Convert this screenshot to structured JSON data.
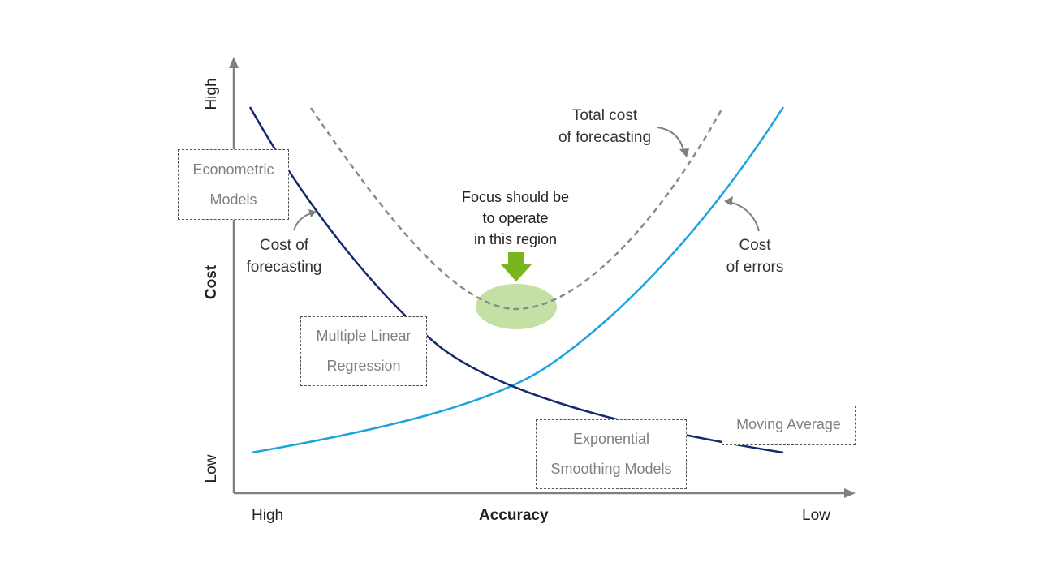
{
  "axes": {
    "y_title": "Cost",
    "y_high": "High",
    "y_low": "Low",
    "x_title": "Accuracy",
    "x_high": "High",
    "x_low": "Low"
  },
  "labels": {
    "total_cost_line1": "Total cost",
    "total_cost_line2": "of forecasting",
    "focus_line1": "Focus should be",
    "focus_line2": "to operate",
    "focus_line3": "in this region",
    "cost_forecasting_line1": "Cost of",
    "cost_forecasting_line2": "forecasting",
    "cost_errors_line1": "Cost",
    "cost_errors_line2": "of errors"
  },
  "methods": {
    "econometric_line1": "Econometric",
    "econometric_line2": "Models",
    "mlr_line1": "Multiple Linear",
    "mlr_line2": "Regression",
    "exp_line1": "Exponential",
    "exp_line2": "Smoothing Models",
    "moving_average": "Moving Average"
  },
  "colors": {
    "cost_of_forecasting": "#14286e",
    "cost_of_errors": "#1ba3e0",
    "total_cost": "#8a8a8a",
    "focus_region": "#c5e0a5",
    "focus_arrow": "#7ab51d",
    "axis": "#808080"
  }
}
